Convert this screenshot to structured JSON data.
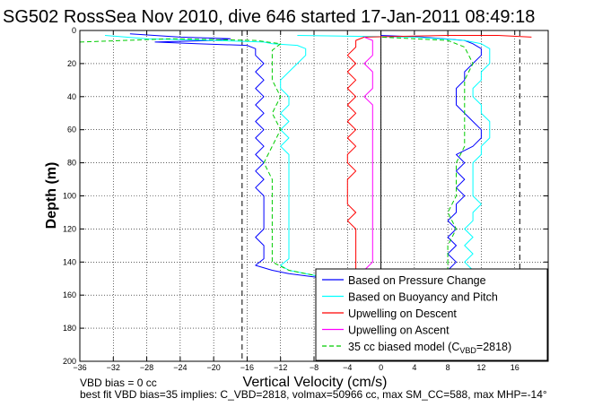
{
  "chart_data": {
    "type": "line",
    "title": "SG502 RossSea Nov 2010, dive 646 started 17-Jan-2011 08:49:18",
    "xlabel": "Vertical Velocity (cm/s)",
    "ylabel": "Depth (m)",
    "xlim": [
      -36,
      20
    ],
    "ylim": [
      200,
      0
    ],
    "y_reversed": true,
    "grid": true,
    "grid_style": "dotted",
    "xticks": [
      -36,
      -32,
      -28,
      -24,
      -20,
      -16,
      -12,
      -8,
      -4,
      0,
      4,
      8,
      12,
      16
    ],
    "xtick_labels": [
      "−36",
      "−32",
      "−28",
      "−24",
      "−20",
      "−16",
      "−12",
      "−8",
      "−4",
      "0",
      "4",
      "8",
      "12",
      "16"
    ],
    "yticks": [
      0,
      20,
      40,
      60,
      80,
      100,
      120,
      140,
      160,
      180,
      200
    ],
    "ytick_labels": [
      "0",
      "20",
      "40",
      "60",
      "80",
      "100",
      "120",
      "140",
      "160",
      "180",
      "200"
    ],
    "reference_lines": [
      {
        "x": -16.6,
        "style": "dashed",
        "color": "#000000"
      },
      {
        "x": 0,
        "style": "solid",
        "color": "#000000"
      },
      {
        "x": 16.6,
        "style": "dashed",
        "color": "#000000"
      }
    ],
    "legend_position": "bottom-right",
    "series": [
      {
        "name": "Based on Pressure Change",
        "color": "#0000ff",
        "style": "solid",
        "points": [
          [
            -30,
            2
          ],
          [
            -24,
            4
          ],
          [
            -18,
            5
          ],
          [
            -20,
            6
          ],
          [
            -27,
            7
          ],
          [
            -22,
            8
          ],
          [
            -16,
            9
          ],
          [
            -15,
            11
          ],
          [
            -15,
            15
          ],
          [
            -14,
            20
          ],
          [
            -15,
            25
          ],
          [
            -14,
            30
          ],
          [
            -15,
            35
          ],
          [
            -14,
            40
          ],
          [
            -15,
            45
          ],
          [
            -14,
            50
          ],
          [
            -15,
            55
          ],
          [
            -14,
            60
          ],
          [
            -15,
            65
          ],
          [
            -14,
            70
          ],
          [
            -15,
            75
          ],
          [
            -14,
            80
          ],
          [
            -15,
            85
          ],
          [
            -14,
            90
          ],
          [
            -15,
            95
          ],
          [
            -14,
            100
          ],
          [
            -14,
            105
          ],
          [
            -14,
            110
          ],
          [
            -14,
            115
          ],
          [
            -14,
            120
          ],
          [
            -15,
            125
          ],
          [
            -14,
            130
          ],
          [
            -14,
            135
          ],
          [
            -14,
            138
          ],
          [
            -15,
            142
          ],
          [
            -13,
            145
          ],
          [
            -11,
            147
          ],
          [
            -8,
            149
          ],
          [
            -5,
            151
          ],
          [
            -3,
            153
          ],
          [
            -3,
            154
          ],
          [
            8,
            153
          ],
          [
            8,
            150
          ],
          [
            9,
            147
          ],
          [
            8,
            145
          ],
          [
            9,
            140
          ],
          [
            8,
            135
          ],
          [
            9,
            130
          ],
          [
            8,
            125
          ],
          [
            9,
            120
          ],
          [
            8,
            115
          ],
          [
            9,
            110
          ],
          [
            9,
            105
          ],
          [
            10,
            100
          ],
          [
            9,
            95
          ],
          [
            10,
            90
          ],
          [
            9,
            85
          ],
          [
            10,
            80
          ],
          [
            9,
            75
          ],
          [
            11,
            70
          ],
          [
            12,
            65
          ],
          [
            12,
            60
          ],
          [
            11,
            55
          ],
          [
            10,
            50
          ],
          [
            9,
            45
          ],
          [
            9,
            40
          ],
          [
            9,
            35
          ],
          [
            10,
            30
          ],
          [
            10,
            25
          ],
          [
            11,
            20
          ],
          [
            12,
            15
          ],
          [
            12,
            11
          ],
          [
            11,
            8
          ],
          [
            10,
            6
          ],
          [
            5,
            4
          ],
          [
            0,
            3
          ]
        ]
      },
      {
        "name": "Based on Buoyancy and Pitch",
        "color": "#00ffff",
        "style": "solid",
        "points": [
          [
            -33,
            3
          ],
          [
            -28,
            5
          ],
          [
            -20,
            6
          ],
          [
            -14,
            7
          ],
          [
            -13,
            8
          ],
          [
            -10,
            9
          ],
          [
            -9,
            11
          ],
          [
            -9,
            15
          ],
          [
            -10,
            20
          ],
          [
            -11,
            25
          ],
          [
            -12,
            30
          ],
          [
            -12,
            35
          ],
          [
            -11,
            40
          ],
          [
            -11,
            45
          ],
          [
            -12,
            50
          ],
          [
            -11,
            55
          ],
          [
            -12,
            60
          ],
          [
            -11,
            65
          ],
          [
            -12,
            70
          ],
          [
            -11,
            75
          ],
          [
            -11,
            80
          ],
          [
            -11,
            85
          ],
          [
            -11,
            90
          ],
          [
            -11,
            95
          ],
          [
            -11,
            100
          ],
          [
            -11,
            105
          ],
          [
            -11,
            110
          ],
          [
            -11,
            115
          ],
          [
            -11,
            120
          ],
          [
            -11,
            125
          ],
          [
            -11,
            130
          ],
          [
            -11,
            135
          ],
          [
            -11,
            138
          ],
          [
            -12,
            142
          ],
          [
            -11,
            145
          ],
          [
            -9,
            147
          ],
          [
            -7,
            149
          ],
          [
            -5,
            151
          ],
          [
            -3,
            153
          ],
          [
            -3,
            154
          ],
          [
            10,
            153
          ],
          [
            10,
            150
          ],
          [
            11,
            145
          ],
          [
            10,
            140
          ],
          [
            11,
            135
          ],
          [
            10,
            130
          ],
          [
            11,
            125
          ],
          [
            10,
            120
          ],
          [
            11,
            115
          ],
          [
            11,
            110
          ],
          [
            12,
            105
          ],
          [
            11,
            100
          ],
          [
            11,
            95
          ],
          [
            11,
            90
          ],
          [
            11,
            85
          ],
          [
            11,
            80
          ],
          [
            12,
            75
          ],
          [
            12,
            70
          ],
          [
            13,
            65
          ],
          [
            13,
            60
          ],
          [
            13,
            55
          ],
          [
            12,
            50
          ],
          [
            12,
            45
          ],
          [
            11,
            40
          ],
          [
            11,
            35
          ],
          [
            12,
            30
          ],
          [
            12,
            25
          ],
          [
            13,
            20
          ],
          [
            13,
            15
          ],
          [
            13,
            11
          ],
          [
            12,
            8
          ],
          [
            10,
            6
          ],
          [
            4,
            4
          ],
          [
            -10,
            3
          ]
        ]
      },
      {
        "name": "Upwelling on Descent",
        "color": "#ff0000",
        "style": "solid",
        "points": [
          [
            18,
            4
          ],
          [
            14,
            3
          ],
          [
            8,
            3
          ],
          [
            -2,
            4
          ],
          [
            -3,
            6
          ],
          [
            -3,
            10
          ],
          [
            -4,
            15
          ],
          [
            -3,
            20
          ],
          [
            -4,
            25
          ],
          [
            -3,
            30
          ],
          [
            -4,
            35
          ],
          [
            -3,
            40
          ],
          [
            -4,
            45
          ],
          [
            -3,
            50
          ],
          [
            -4,
            55
          ],
          [
            -3,
            60
          ],
          [
            -4,
            65
          ],
          [
            -3,
            70
          ],
          [
            -4,
            75
          ],
          [
            -4,
            80
          ],
          [
            -3,
            85
          ],
          [
            -4,
            90
          ],
          [
            -4,
            95
          ],
          [
            -4,
            100
          ],
          [
            -4,
            105
          ],
          [
            -3,
            110
          ],
          [
            -4,
            115
          ],
          [
            -3,
            120
          ],
          [
            -3,
            125
          ],
          [
            -3,
            130
          ],
          [
            -3,
            135
          ],
          [
            -3,
            140
          ],
          [
            -3,
            145
          ],
          [
            -3,
            150
          ]
        ]
      },
      {
        "name": "Upwelling on Ascent",
        "color": "#ff00ff",
        "style": "solid",
        "points": [
          [
            -3,
            150
          ],
          [
            -2,
            145
          ],
          [
            -1,
            140
          ],
          [
            -1,
            135
          ],
          [
            -1,
            130
          ],
          [
            -1,
            125
          ],
          [
            -1,
            120
          ],
          [
            -1,
            115
          ],
          [
            -1,
            110
          ],
          [
            -1,
            105
          ],
          [
            -1,
            100
          ],
          [
            -1,
            95
          ],
          [
            -1,
            90
          ],
          [
            -1,
            85
          ],
          [
            -1,
            80
          ],
          [
            -1,
            75
          ],
          [
            -1,
            70
          ],
          [
            -1,
            65
          ],
          [
            -1,
            60
          ],
          [
            -1,
            55
          ],
          [
            -1,
            50
          ],
          [
            -1,
            45
          ],
          [
            -2,
            40
          ],
          [
            -1,
            35
          ],
          [
            -1,
            30
          ],
          [
            -1,
            25
          ],
          [
            -2,
            20
          ],
          [
            -1,
            15
          ],
          [
            -1,
            10
          ],
          [
            -1,
            6
          ],
          [
            -2,
            4
          ]
        ]
      },
      {
        "name": "35 cc biased model (C",
        "name_sub": "VBD",
        "name_tail": "=2818)",
        "color": "#00cc00",
        "style": "dashed",
        "points": [
          [
            -36,
            7
          ],
          [
            -25,
            5
          ],
          [
            -15,
            6
          ],
          [
            -12,
            8
          ],
          [
            -13,
            12
          ],
          [
            -13,
            20
          ],
          [
            -13,
            30
          ],
          [
            -12,
            40
          ],
          [
            -13,
            50
          ],
          [
            -12,
            60
          ],
          [
            -13,
            70
          ],
          [
            -14,
            80
          ],
          [
            -13,
            90
          ],
          [
            -13,
            100
          ],
          [
            -13,
            110
          ],
          [
            -13,
            120
          ],
          [
            -13,
            130
          ],
          [
            -13,
            140
          ],
          [
            -11,
            145
          ],
          [
            -8,
            148
          ],
          [
            -6,
            151
          ],
          [
            -3,
            153
          ],
          [
            -3,
            154
          ],
          [
            7,
            153
          ],
          [
            8,
            150
          ],
          [
            8,
            140
          ],
          [
            8,
            130
          ],
          [
            9,
            120
          ],
          [
            8,
            110
          ],
          [
            9,
            100
          ],
          [
            9,
            90
          ],
          [
            9,
            80
          ],
          [
            10,
            70
          ],
          [
            10,
            60
          ],
          [
            10,
            50
          ],
          [
            10,
            40
          ],
          [
            10,
            30
          ],
          [
            11,
            20
          ],
          [
            10,
            10
          ],
          [
            8,
            6
          ],
          [
            0,
            4
          ]
        ]
      }
    ]
  },
  "footer": {
    "line1": "VBD bias = 0 cc",
    "line2": "best fit VBD bias=35 implies: C_VBD=2818, volmax=50966 cc, max SM_CC=588, max MHP=-14°"
  }
}
